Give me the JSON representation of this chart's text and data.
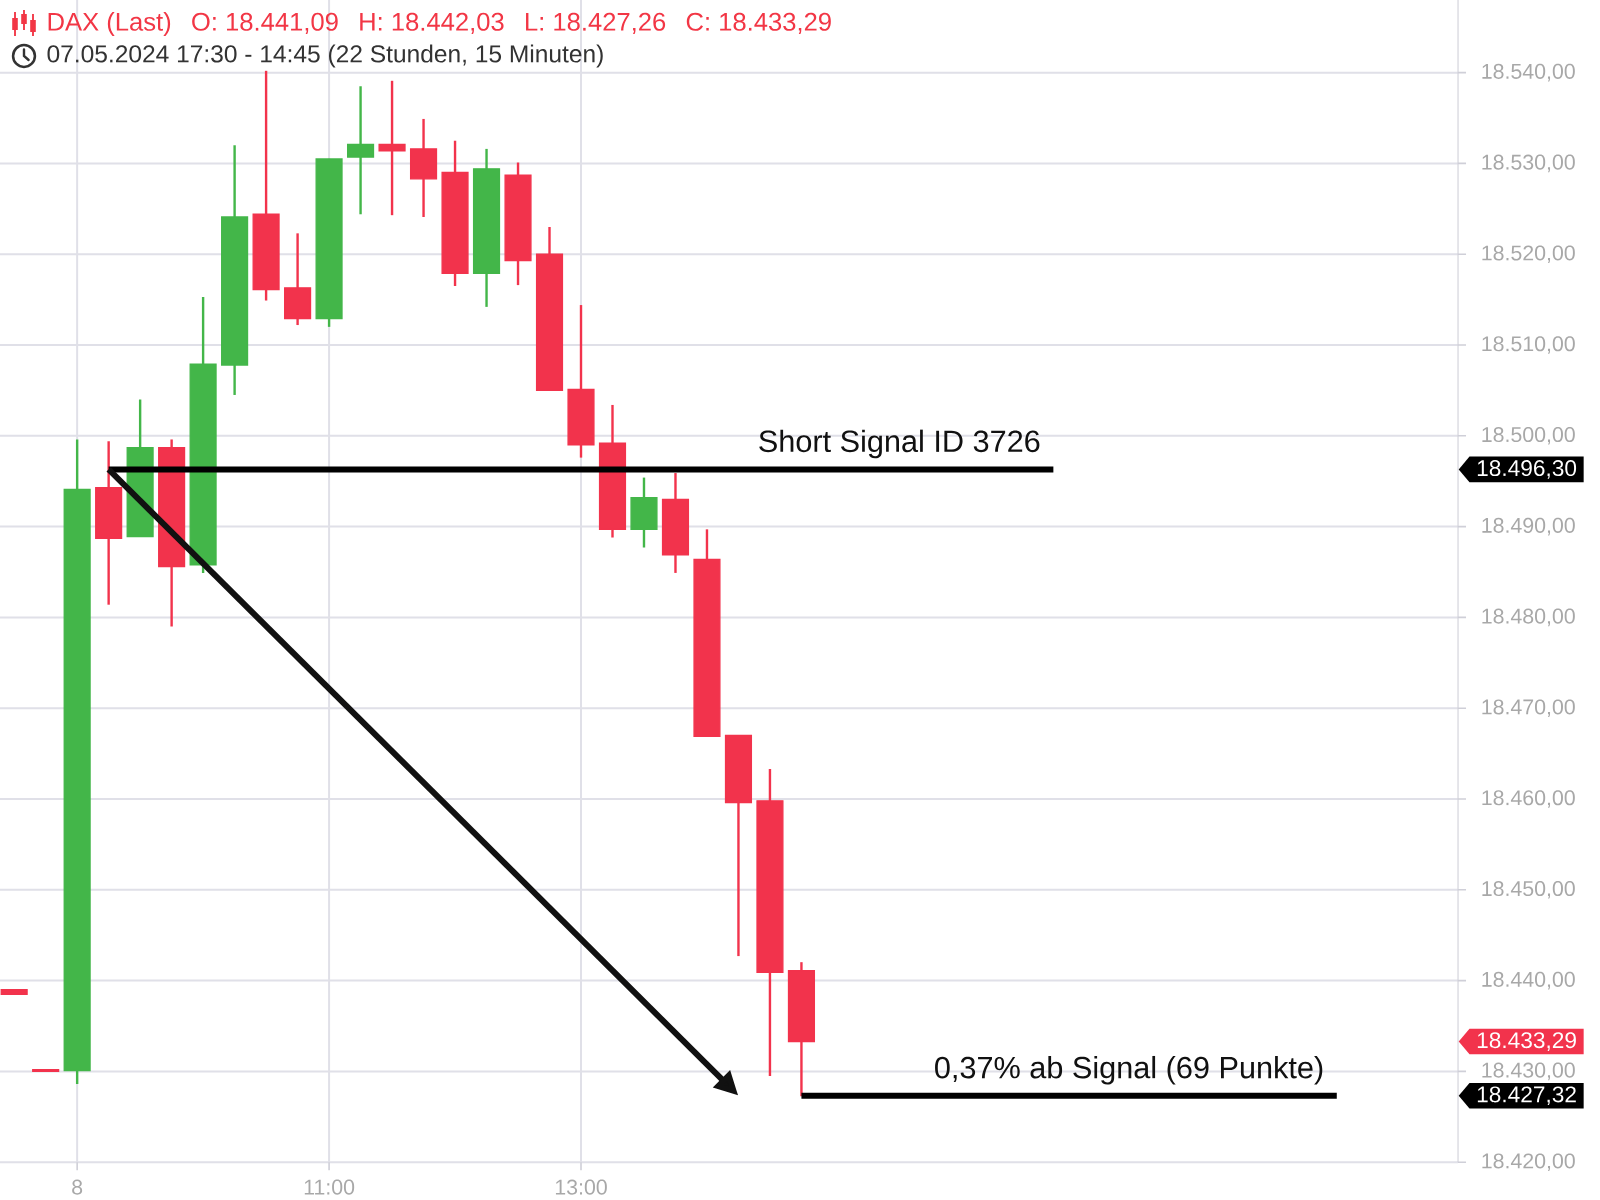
{
  "chart_data": {
    "type": "candlestick",
    "title": "DAX (Last)",
    "subtitle": "07.05.2024 17:30 - 14:45 (22 Stunden, 15 Minuten)",
    "categories": [
      null,
      null,
      "8",
      null,
      null,
      null,
      null,
      null,
      null,
      null,
      "11:00",
      null,
      null,
      null,
      null,
      null,
      null,
      null,
      "13:00",
      null,
      null,
      null,
      null,
      null,
      null,
      null,
      null,
      null,
      null,
      null,
      null,
      null,
      null,
      null,
      null,
      null,
      null,
      null,
      null,
      null,
      null,
      null,
      null,
      null,
      null,
      null
    ],
    "ohlc": [
      [
        18439.0,
        18439.0,
        18438.5,
        18438.5
      ],
      [
        18430.2,
        18430.2,
        18430.0,
        18430.0
      ],
      [
        18430.1,
        18499.6,
        18428.6,
        18494.1
      ],
      [
        18494.3,
        18499.4,
        18481.4,
        18488.7
      ],
      [
        18488.9,
        18504.0,
        18488.9,
        18498.7
      ],
      [
        18498.7,
        18499.6,
        18479.0,
        18485.6
      ],
      [
        18485.8,
        18515.3,
        18484.9,
        18507.9
      ],
      [
        18507.8,
        18532.0,
        18504.5,
        18524.1
      ],
      [
        18524.4,
        18540.2,
        18514.9,
        18516.1
      ],
      [
        18516.3,
        18522.3,
        18512.2,
        18512.9
      ],
      [
        18512.9,
        18530.5,
        18512.0,
        18530.5
      ],
      [
        18530.7,
        18538.5,
        18524.4,
        18532.1
      ],
      [
        18532.1,
        18539.1,
        18524.3,
        18531.4
      ],
      [
        18531.6,
        18534.9,
        18524.1,
        18528.3
      ],
      [
        18529.0,
        18532.5,
        18516.5,
        18517.9
      ],
      [
        18517.9,
        18531.6,
        18514.2,
        18529.4
      ],
      [
        18528.7,
        18530.1,
        18516.6,
        18519.3
      ],
      [
        18520.0,
        18523.0,
        18505.0,
        18505.0
      ],
      [
        18505.1,
        18514.4,
        18497.6,
        18499.0
      ],
      [
        18499.2,
        18503.4,
        18488.8,
        18489.7
      ],
      [
        18489.7,
        18495.4,
        18487.7,
        18493.2
      ],
      [
        18493.0,
        18495.9,
        18484.9,
        18486.9
      ],
      [
        18486.4,
        18489.7,
        18466.9,
        18466.9
      ],
      [
        18467.0,
        18467.0,
        18442.7,
        18459.6
      ],
      [
        18459.8,
        18463.3,
        18429.5,
        18440.9
      ],
      [
        18441.09,
        18442.03,
        18427.26,
        18433.29
      ],
      null,
      null,
      null,
      null,
      null,
      null,
      null,
      null,
      null,
      null,
      null,
      null,
      null,
      null,
      null,
      null,
      null,
      null,
      null,
      null
    ],
    "colors": [
      "#f2334c",
      "#f2334c",
      "#43b649",
      "#f2334c",
      "#43b649",
      "#f2334c",
      "#43b649",
      "#43b649",
      "#f2334c",
      "#f2334c",
      "#43b649",
      "#43b649",
      "#f2334c",
      "#f2334c",
      "#f2334c",
      "#43b649",
      "#f2334c",
      "#f2334c",
      "#f2334c",
      "#f2334c",
      "#43b649",
      "#f2334c",
      "#f2334c",
      "#f2334c",
      "#f2334c",
      "#f2334c",
      null,
      null,
      null,
      null,
      null,
      null,
      null,
      null,
      null,
      null,
      null,
      null,
      null,
      null,
      null,
      null,
      null,
      null,
      null,
      null
    ],
    "series": [
      {
        "type": "line",
        "color": "#000000",
        "values": [
          null,
          null,
          null,
          18496.3,
          18496.3,
          18496.3,
          18496.3,
          18496.3,
          18496.3,
          18496.3,
          18496.3,
          18496.3,
          18496.3,
          18496.3,
          18496.3,
          18496.3,
          18496.3,
          18496.3,
          18496.3,
          18496.3,
          18496.3,
          18496.3,
          18496.3,
          18496.3,
          18496.3,
          18496.3,
          18496.3,
          18496.3,
          18496.3,
          18496.3,
          18496.3,
          18496.3,
          18496.3,
          18496.3,
          null,
          null,
          null,
          null,
          null,
          null,
          null,
          null,
          null,
          null,
          null,
          null
        ]
      },
      {
        "type": "line",
        "color": "#000000",
        "values": [
          null,
          null,
          null,
          null,
          null,
          null,
          null,
          null,
          null,
          null,
          null,
          null,
          null,
          null,
          null,
          null,
          null,
          null,
          null,
          null,
          null,
          null,
          null,
          null,
          null,
          18427.32,
          18427.32,
          18427.32,
          18427.32,
          18427.32,
          18427.32,
          18427.32,
          18427.32,
          18427.32,
          18427.32,
          18427.32,
          18427.32,
          18427.32,
          18427.32,
          18427.32,
          18427.32,
          18427.32,
          18427.32,
          null,
          null,
          null
        ]
      }
    ],
    "ylim": [
      18420,
      18548
    ],
    "yticks": [
      {
        "value": 18420,
        "label": "18.420,00"
      },
      {
        "value": 18427.32,
        "label": "18.427,32"
      },
      {
        "value": 18430,
        "label": "18.430,00"
      },
      {
        "value": 18433.29,
        "label": "18.433,29"
      },
      {
        "value": 18440,
        "label": "18.440,00"
      },
      {
        "value": 18450,
        "label": "18.450,00"
      },
      {
        "value": 18460,
        "label": "18.460,00"
      },
      {
        "value": 18470,
        "label": "18.470,00"
      },
      {
        "value": 18480,
        "label": "18.480,00"
      },
      {
        "value": 18490,
        "label": "18.490,00"
      },
      {
        "value": 18496.3,
        "label": "18.496,30"
      },
      {
        "value": 18500,
        "label": "18.500,00"
      },
      {
        "value": 18510,
        "label": "18.510,00"
      },
      {
        "value": 18520,
        "label": "18.520,00"
      },
      {
        "value": 18530,
        "label": "18.530,00"
      },
      {
        "value": 18540,
        "label": "18.540,00"
      }
    ],
    "grid": true,
    "annotations": [
      {
        "text": "Short Signal ID 3726",
        "y": 18496.3
      },
      {
        "text": "0,37% ab Signal (69 Punkte)",
        "y": 18427.32
      },
      "O: 18.441,09",
      "H: 18.442,03",
      "L: 18.427,26",
      "C: 18.433,29"
    ]
  }
}
